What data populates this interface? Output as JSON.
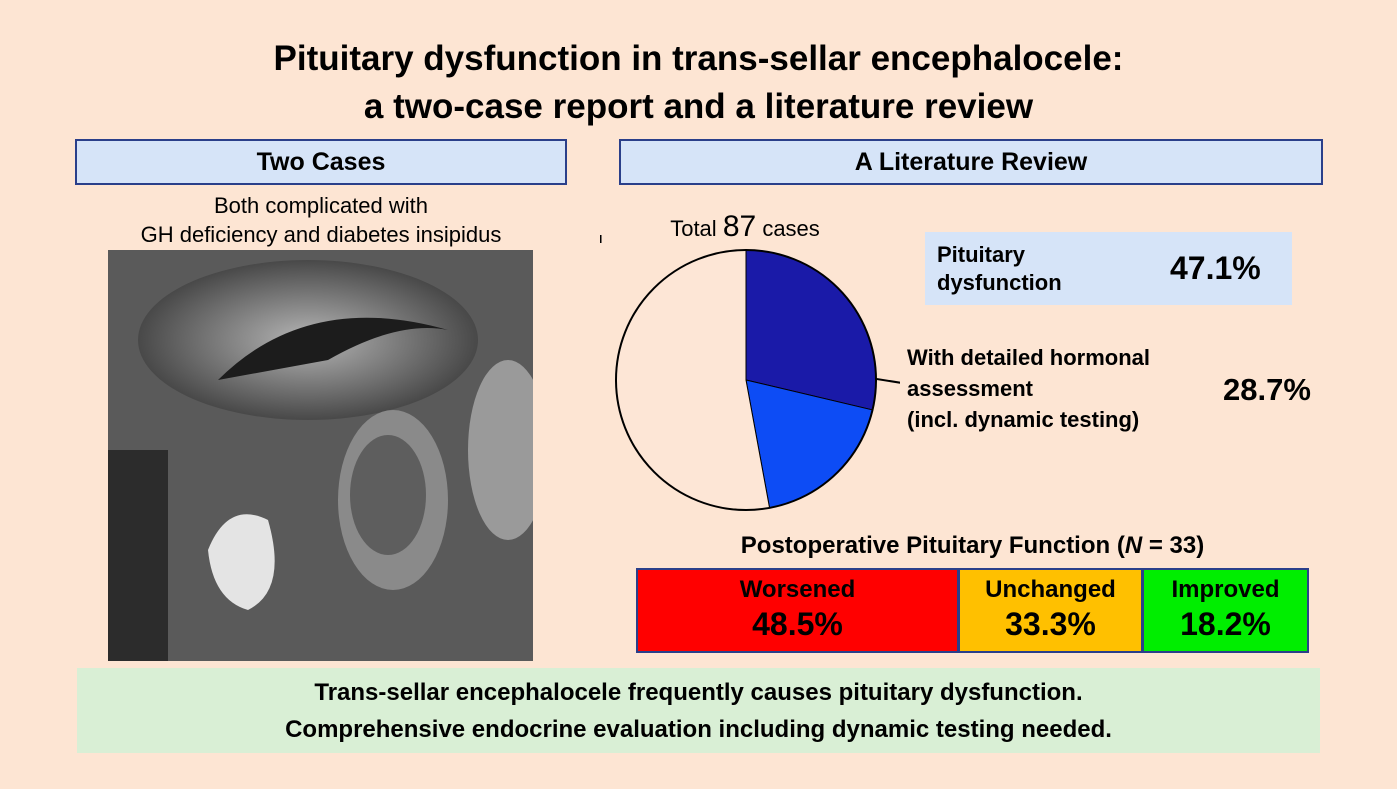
{
  "title_lines": [
    "Pituitary dysfunction in trans-sellar encephalocele:",
    "a two-case report and a literature review"
  ],
  "cases": {
    "heading": "Two Cases",
    "caption_lines": [
      "Both complicated with",
      "GH deficiency and diabetes insipidus"
    ]
  },
  "review": {
    "heading": "A Literature Review",
    "total": {
      "prefix": "Total",
      "count": "87",
      "suffix": "cases"
    },
    "pie": {
      "segments": [
        {
          "value": 28.7,
          "color": "#1a1aa8",
          "hatched": true
        },
        {
          "value": 18.4,
          "color": "#0d4cf5"
        },
        {
          "value": 52.9,
          "color": "#fde6d6"
        }
      ]
    },
    "dysfunction": {
      "label_lines": [
        "Pituitary",
        "dysfunction"
      ],
      "value_label": "47.1%"
    },
    "detailed": {
      "label_lines": [
        "With detailed hormonal",
        "assessment",
        "(incl. dynamic testing)"
      ],
      "value_label": "28.7%"
    }
  },
  "postoperative": {
    "heading": {
      "text": "Postoperative Pituitary Function (",
      "symbol": "N",
      "rest": " = 33)"
    },
    "outcomes": [
      {
        "label": "Worsened",
        "value": "48.5%",
        "color": "#ff0000"
      },
      {
        "label": "Unchanged",
        "value": "33.3%",
        "color": "#ffc000"
      },
      {
        "label": "Improved",
        "value": "18.2%",
        "color": "#00ee00"
      }
    ]
  },
  "conclusion_lines": [
    "Trans-sellar encephalocele frequently causes pituitary dysfunction.",
    "Comprehensive endocrine evaluation including dynamic testing needed."
  ]
}
